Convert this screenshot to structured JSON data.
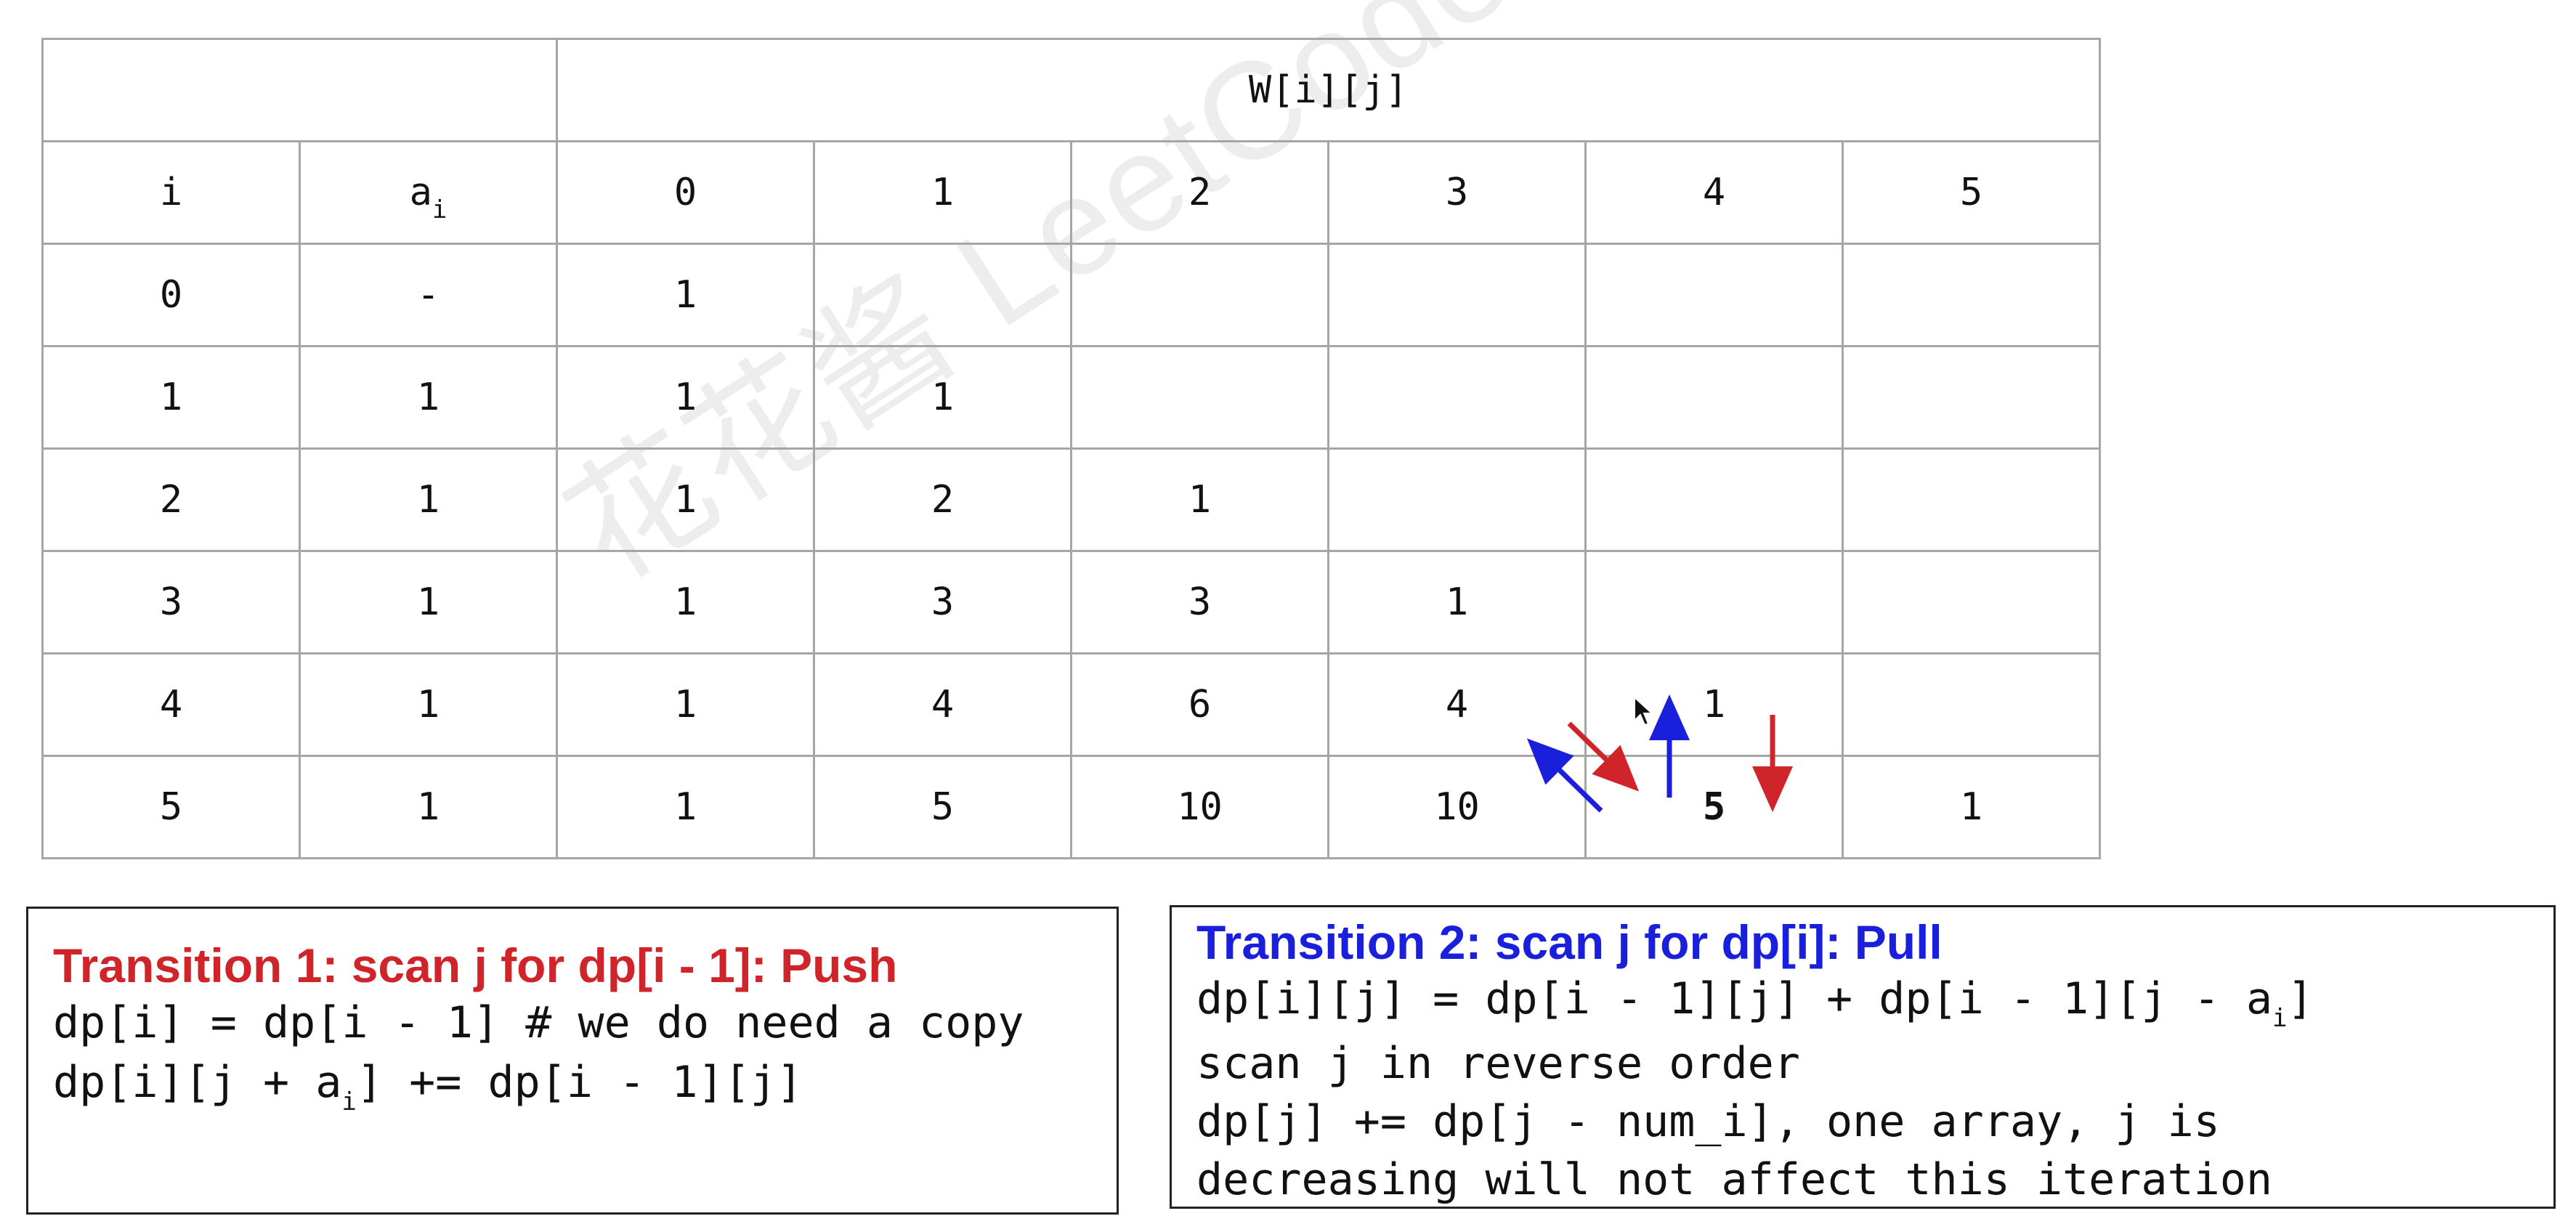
{
  "table": {
    "header_title": "W[i][j]",
    "col_i": "i",
    "col_a": "a",
    "col_a_sub": "i",
    "j_headers": [
      "0",
      "1",
      "2",
      "3",
      "4",
      "5"
    ],
    "rows": [
      {
        "i": "0",
        "a": "-",
        "w": [
          "1",
          "",
          "",
          "",
          "",
          ""
        ]
      },
      {
        "i": "1",
        "a": "1",
        "w": [
          "1",
          "1",
          "",
          "",
          "",
          ""
        ]
      },
      {
        "i": "2",
        "a": "1",
        "w": [
          "1",
          "2",
          "1",
          "",
          "",
          ""
        ]
      },
      {
        "i": "3",
        "a": "1",
        "w": [
          "1",
          "3",
          "3",
          "1",
          "",
          ""
        ]
      },
      {
        "i": "4",
        "a": "1",
        "w": [
          "1",
          "4",
          "6",
          "4",
          "1",
          ""
        ]
      },
      {
        "i": "5",
        "a": "1",
        "w": [
          "1",
          "5",
          "10",
          "10",
          "5",
          "1"
        ]
      }
    ],
    "highlight_color": "#d0242b"
  },
  "watermark": "花花酱 LeetCode http://zxi.mytechroad.com/blog/",
  "transition1": {
    "title": "Transition 1: scan j for dp[i - 1]: Push",
    "title_color": "#d0242b",
    "line1": "dp[i] = dp[i - 1] # we do need a copy",
    "line2_pre": "dp[i][j + a",
    "line2_sub": "i",
    "line2_post": "] += dp[i - 1][j]"
  },
  "transition2": {
    "title": "Transition 2: scan j for dp[i]: Pull",
    "title_color": "#1a1fdc",
    "line1_pre": "dp[i][j] = dp[i - 1][j] + dp[i - 1][j - a",
    "line1_sub": "i",
    "line1_post": "]",
    "line2": "scan j in reverse order",
    "line3": "dp[j] += dp[j - num_i], one array, j is",
    "line4": "decreasing will not affect this iteration"
  },
  "arrows": {
    "push_color": "#d0242b",
    "pull_color": "#1a1fdc"
  }
}
